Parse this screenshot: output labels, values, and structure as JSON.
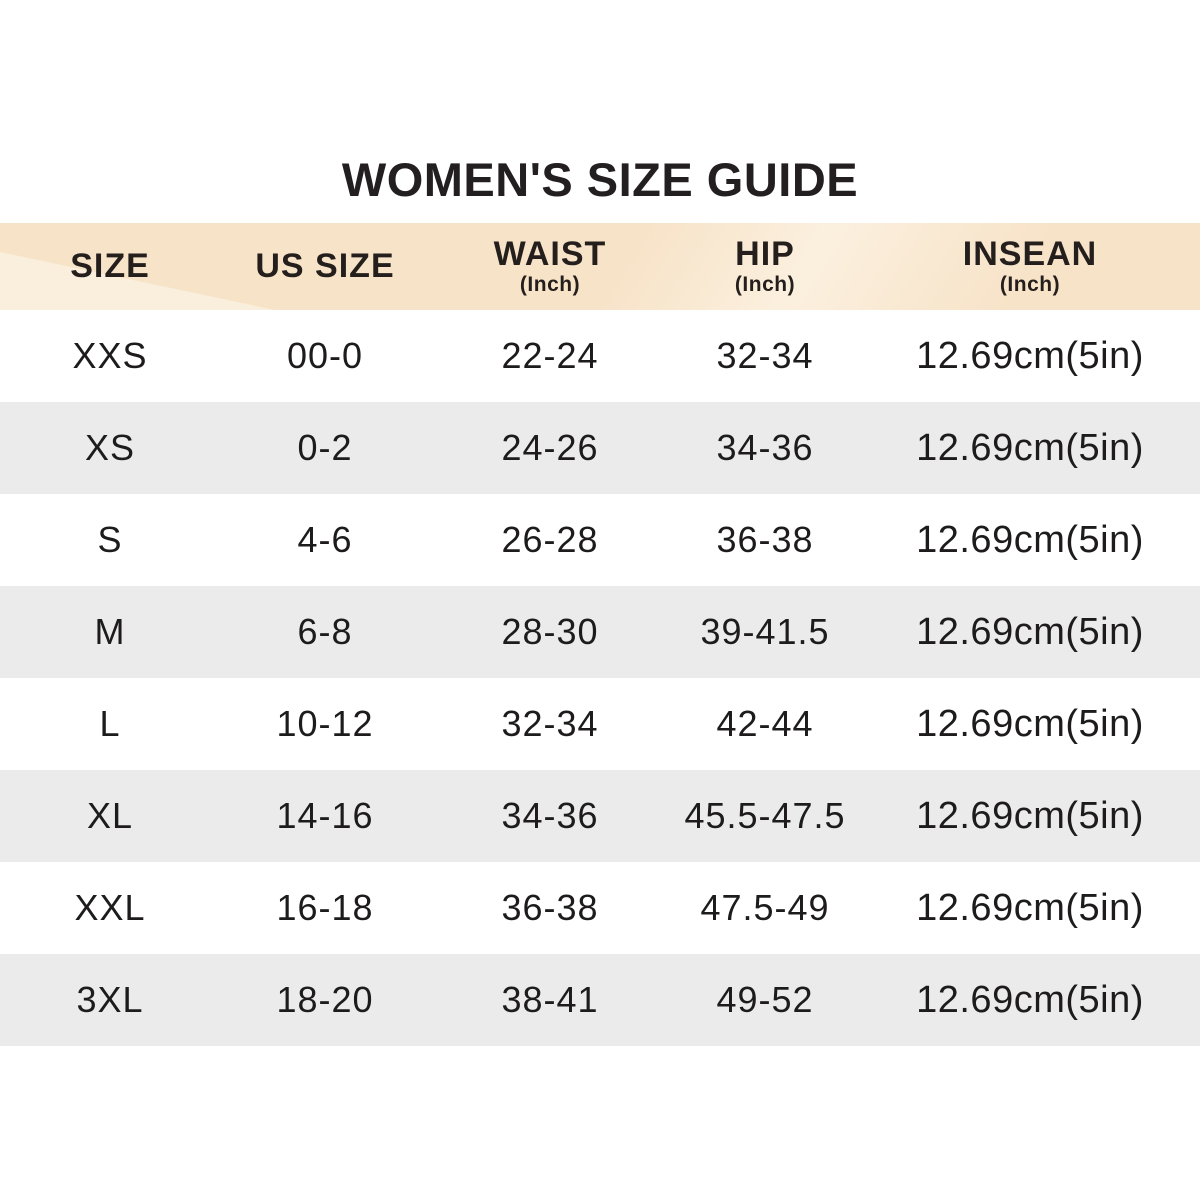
{
  "title": "WOMEN'S SIZE GUIDE",
  "colors": {
    "header_bg": "#f7e3c8",
    "header_highlight": "#faefdc",
    "row_alt_bg": "#ebebeb",
    "text": "#1d1b1b",
    "title_text": "#231f20"
  },
  "table": {
    "columns": [
      {
        "label": "SIZE",
        "sub": ""
      },
      {
        "label": "US SIZE",
        "sub": ""
      },
      {
        "label": "WAIST",
        "sub": "(Inch)"
      },
      {
        "label": "HIP",
        "sub": "(Inch)"
      },
      {
        "label": "INSEAN",
        "sub": "(Inch)"
      }
    ],
    "rows": [
      {
        "size": "XXS",
        "us": "00-0",
        "waist": "22-24",
        "hip": "32-34",
        "inseam": "12.69cm(5in)"
      },
      {
        "size": "XS",
        "us": "0-2",
        "waist": "24-26",
        "hip": "34-36",
        "inseam": "12.69cm(5in)"
      },
      {
        "size": "S",
        "us": "4-6",
        "waist": "26-28",
        "hip": "36-38",
        "inseam": "12.69cm(5in)"
      },
      {
        "size": "M",
        "us": "6-8",
        "waist": "28-30",
        "hip": "39-41.5",
        "inseam": "12.69cm(5in)"
      },
      {
        "size": "L",
        "us": "10-12",
        "waist": "32-34",
        "hip": "42-44",
        "inseam": "12.69cm(5in)"
      },
      {
        "size": "XL",
        "us": "14-16",
        "waist": "34-36",
        "hip": "45.5-47.5",
        "inseam": "12.69cm(5in)"
      },
      {
        "size": "XXL",
        "us": "16-18",
        "waist": "36-38",
        "hip": "47.5-49",
        "inseam": "12.69cm(5in)"
      },
      {
        "size": "3XL",
        "us": "18-20",
        "waist": "38-41",
        "hip": "49-52",
        "inseam": "12.69cm(5in)"
      }
    ]
  }
}
